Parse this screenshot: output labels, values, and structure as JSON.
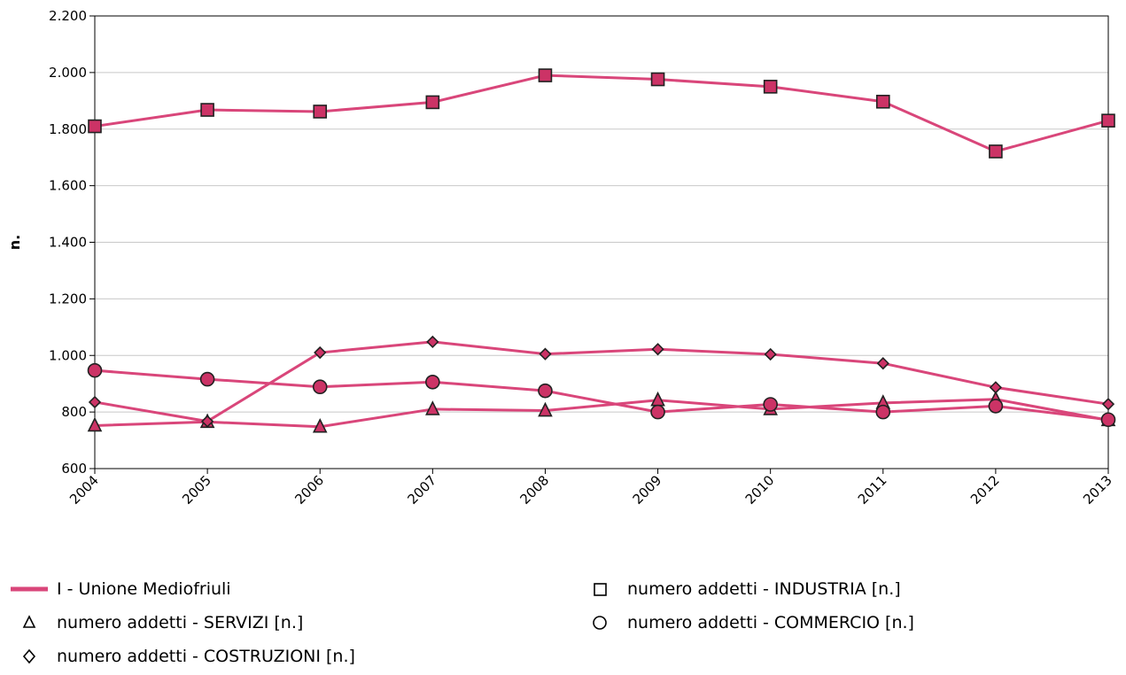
{
  "chart_data": {
    "type": "line",
    "title": "",
    "xlabel": "",
    "ylabel": "n.",
    "categories": [
      "2004",
      "2005",
      "2006",
      "2007",
      "2008",
      "2009",
      "2010",
      "2011",
      "2012",
      "2013"
    ],
    "ylim": [
      600,
      2200
    ],
    "yticks": [
      600,
      800,
      1000,
      1200,
      1400,
      1600,
      1800,
      2000,
      2200
    ],
    "ytick_labels": [
      "600",
      "800",
      "1.000",
      "1.200",
      "1.400",
      "1.600",
      "1.800",
      "2.000",
      "2.200"
    ],
    "grid": true,
    "line_color": "#d9467a",
    "marker_color": "#cc3366",
    "series": [
      {
        "name": "numero addetti - INDUSTRIA [n.]",
        "marker": "square",
        "values": [
          1810,
          1868,
          1862,
          1895,
          1990,
          1976,
          1950,
          1897,
          1721,
          1830
        ]
      },
      {
        "name": "numero addetti - SERVIZI [n.]",
        "marker": "triangle",
        "values": [
          752,
          765,
          748,
          810,
          805,
          842,
          810,
          832,
          845,
          771
        ]
      },
      {
        "name": "numero addetti - COMMERCIO [n.]",
        "marker": "circle",
        "values": [
          947,
          916,
          889,
          906,
          875,
          800,
          827,
          800,
          821,
          773
        ]
      },
      {
        "name": "numero addetti - COSTRUZIONI [n.]",
        "marker": "diamond",
        "values": [
          835,
          767,
          1010,
          1048,
          1005,
          1022,
          1004,
          972,
          887,
          828
        ]
      }
    ]
  },
  "legend": {
    "entity_label": "I - Unione Mediofriuli",
    "items": [
      {
        "label": "numero addetti - SERVIZI [n.]",
        "marker": "triangle"
      },
      {
        "label": "numero addetti - COSTRUZIONI [n.]",
        "marker": "diamond"
      },
      {
        "label": "numero addetti - INDUSTRIA [n.]",
        "marker": "square"
      },
      {
        "label": "numero addetti - COMMERCIO [n.]",
        "marker": "circle"
      }
    ]
  }
}
